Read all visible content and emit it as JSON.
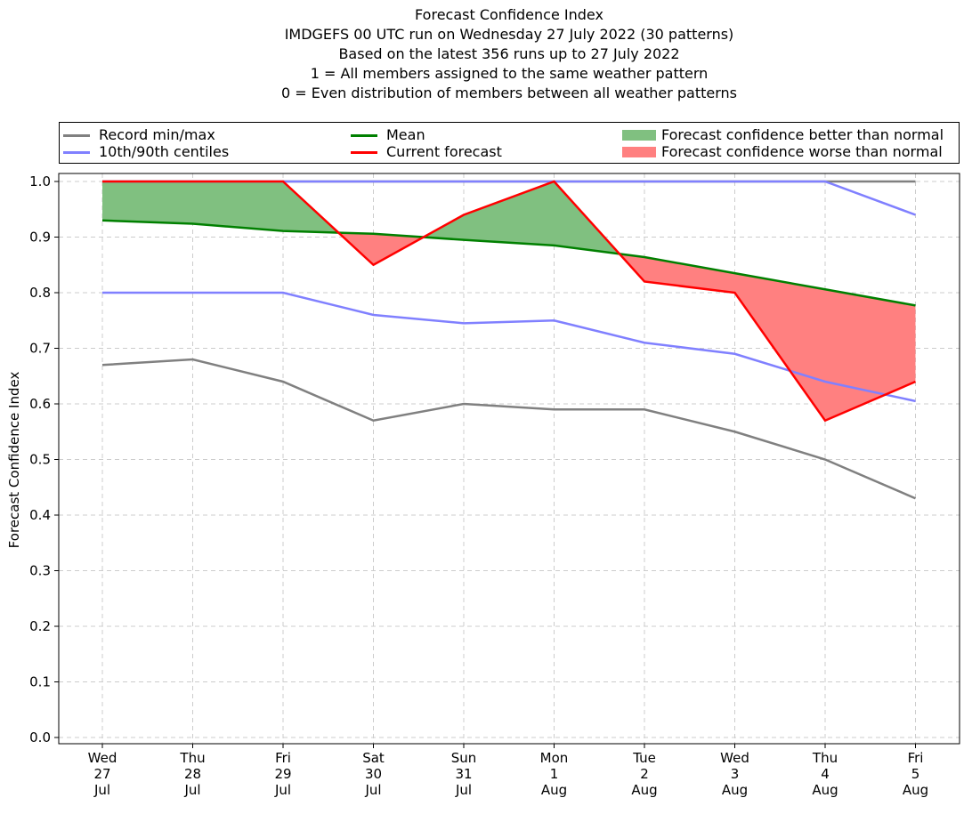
{
  "title_lines": [
    "Forecast Confidence Index",
    "IMDGEFS 00 UTC run on Wednesday 27 July 2022 (30 patterns)",
    "Based on the latest 356 runs up to 27 July 2022",
    "1 = All members assigned to the same weather pattern",
    "0 = Even distribution of members between all weather patterns"
  ],
  "legend": {
    "record": "Record min/max",
    "centiles": "10th/90th centiles",
    "mean": "Mean",
    "current": "Current forecast",
    "better": "Forecast confidence better than normal",
    "worse": "Forecast confidence worse than normal"
  },
  "colors": {
    "record": "#808080",
    "centiles": "#8080ff",
    "mean": "#008000",
    "current": "#ff0000",
    "better": "#80c080",
    "worse": "#ff8080"
  },
  "chart_data": {
    "type": "line",
    "ylabel": "Forecast Confidence Index",
    "ylim": [
      0.0,
      1.0
    ],
    "yticks": [
      "0.0",
      "0.1",
      "0.2",
      "0.3",
      "0.4",
      "0.5",
      "0.6",
      "0.7",
      "0.8",
      "0.9",
      "1.0"
    ],
    "grid": true,
    "legend_position": "top",
    "categories": [
      [
        "Wed",
        "27",
        "Jul"
      ],
      [
        "Thu",
        "28",
        "Jul"
      ],
      [
        "Fri",
        "29",
        "Jul"
      ],
      [
        "Sat",
        "30",
        "Jul"
      ],
      [
        "Sun",
        "31",
        "Jul"
      ],
      [
        "Mon",
        "1",
        "Aug"
      ],
      [
        "Tue",
        "2",
        "Aug"
      ],
      [
        "Wed",
        "3",
        "Aug"
      ],
      [
        "Thu",
        "4",
        "Aug"
      ],
      [
        "Fri",
        "5",
        "Aug"
      ]
    ],
    "series": [
      {
        "name": "Record min/max",
        "key": "record_min",
        "values": [
          0.67,
          0.68,
          0.64,
          0.57,
          0.6,
          0.59,
          0.59,
          0.55,
          0.5,
          0.43
        ]
      },
      {
        "name": "Record min/max",
        "key": "record_max",
        "values": [
          1.0,
          1.0,
          1.0,
          1.0,
          1.0,
          1.0,
          1.0,
          1.0,
          1.0,
          1.0
        ]
      },
      {
        "name": "10th/90th centiles",
        "key": "p10",
        "values": [
          0.8,
          0.8,
          0.8,
          0.76,
          0.745,
          0.75,
          0.71,
          0.69,
          0.64,
          0.605
        ]
      },
      {
        "name": "10th/90th centiles",
        "key": "p90",
        "values": [
          1.0,
          1.0,
          1.0,
          1.0,
          1.0,
          1.0,
          1.0,
          1.0,
          1.0,
          0.94
        ]
      },
      {
        "name": "Mean",
        "key": "mean",
        "values": [
          0.93,
          0.924,
          0.911,
          0.906,
          0.895,
          0.885,
          0.864,
          0.835,
          0.806,
          0.777
        ]
      },
      {
        "name": "Current forecast",
        "key": "current",
        "values": [
          1.0,
          1.0,
          1.0,
          0.85,
          0.94,
          1.0,
          0.82,
          0.8,
          0.57,
          0.64
        ]
      }
    ]
  }
}
